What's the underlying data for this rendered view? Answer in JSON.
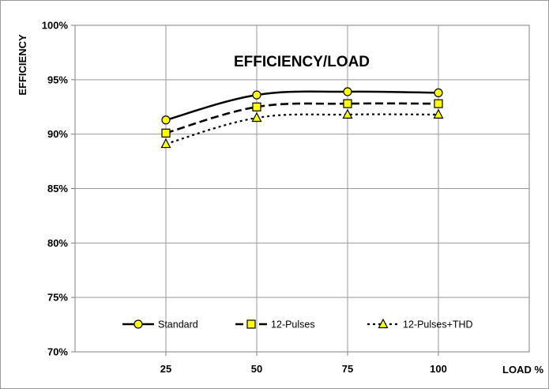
{
  "chart_data": {
    "type": "line",
    "title": "EFFICIENCY/LOAD",
    "xlabel": "LOAD %",
    "ylabel": "EFFICIENCY",
    "categories": [
      "25",
      "50",
      "75",
      "100"
    ],
    "x": [
      25,
      50,
      75,
      100
    ],
    "xlim": [
      0,
      125
    ],
    "ylim": [
      70,
      100
    ],
    "yticks": [
      "70%",
      "75%",
      "80%",
      "85%",
      "90%",
      "95%",
      "100%"
    ],
    "grid": true,
    "legend_position": "bottom",
    "series": [
      {
        "name": "Standard",
        "values": [
          91.3,
          93.6,
          93.9,
          93.8
        ],
        "marker": "circle",
        "dash": "solid",
        "color": "#000000",
        "marker_fill": "#ffff00"
      },
      {
        "name": "12-Pulses",
        "values": [
          90.1,
          92.5,
          92.8,
          92.8
        ],
        "marker": "square",
        "dash": "dashed",
        "color": "#000000",
        "marker_fill": "#ffff00"
      },
      {
        "name": "12-Pulses+THD",
        "values": [
          89.1,
          91.5,
          91.8,
          91.8
        ],
        "marker": "triangle",
        "dash": "dotted",
        "color": "#000000",
        "marker_fill": "#ffff00"
      }
    ]
  }
}
